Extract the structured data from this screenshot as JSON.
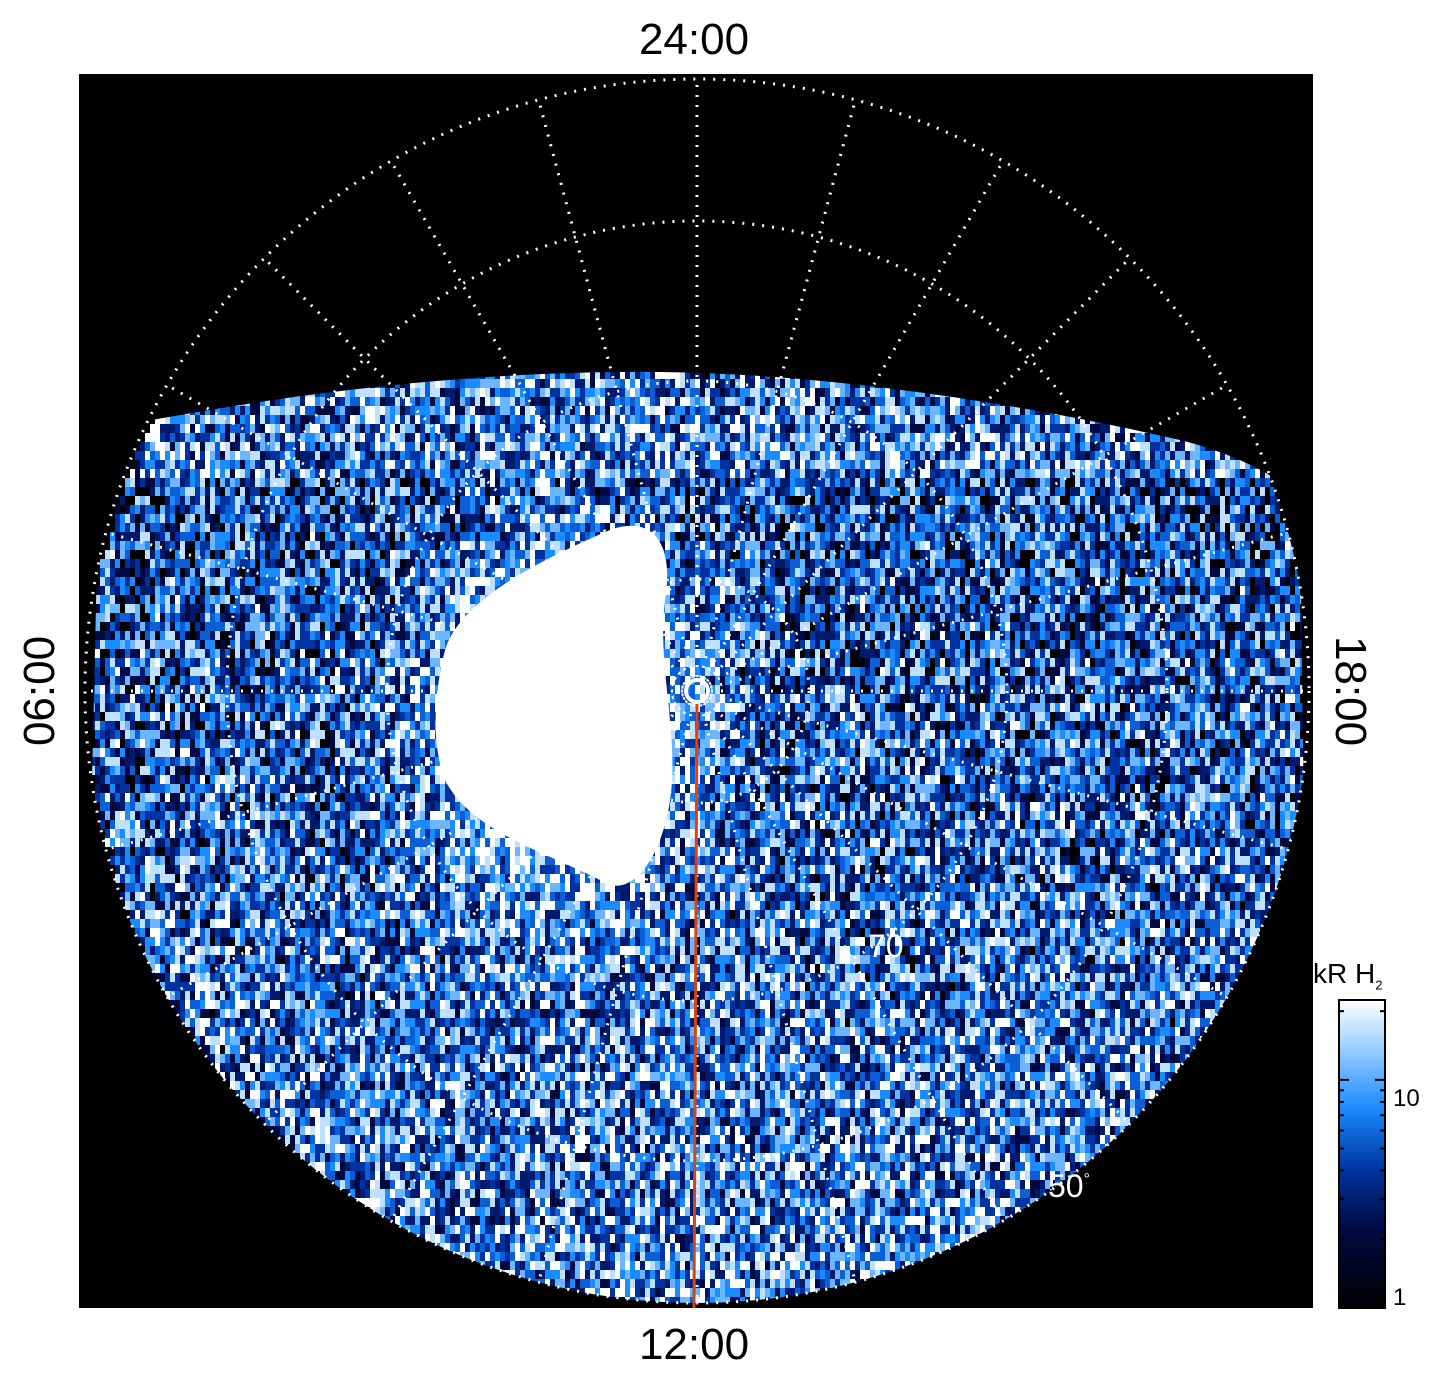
{
  "figure": {
    "local_time_labels": {
      "top": "24:00",
      "bottom": "12:00",
      "left": "06:00",
      "right": "18:00"
    },
    "latitude_labels": [
      {
        "value": "70",
        "unit": "°"
      },
      {
        "value": "50",
        "unit": "°"
      }
    ],
    "colorbar": {
      "title_main": "kR H",
      "title_subscript": "2",
      "ticks": [
        "10",
        "1"
      ],
      "scale": "log",
      "colors": [
        "#000000",
        "#000a40",
        "#0033a0",
        "#1a8cff",
        "#9fd0ff",
        "#ffffff"
      ]
    },
    "colors": {
      "background": "#000000",
      "grid": "#ffffff",
      "meridian_line": "#d8430f",
      "emission_bright": "#ffffff",
      "emission_mid": "#1a8cff",
      "emission_low": "#001a6e"
    }
  }
}
